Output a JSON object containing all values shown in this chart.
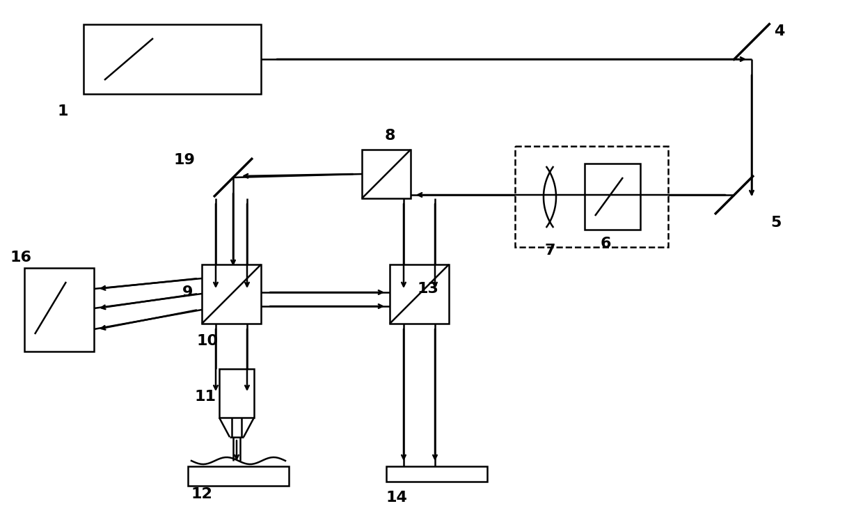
{
  "bg_color": "#ffffff",
  "line_color": "#000000",
  "fig_width": 12.4,
  "fig_height": 7.5,
  "dpi": 100
}
